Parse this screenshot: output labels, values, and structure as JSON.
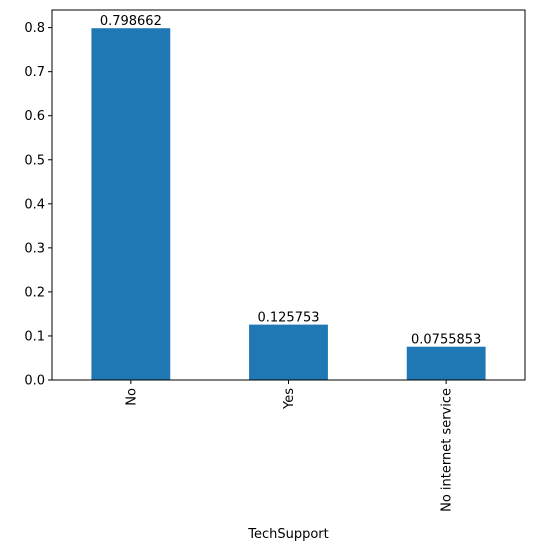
{
  "chart_data": {
    "type": "bar",
    "categories": [
      "No",
      "Yes",
      "No internet service"
    ],
    "values": [
      0.798662,
      0.125753,
      0.0755853
    ],
    "data_labels": [
      "0.798662",
      "0.125753",
      "0.0755853"
    ],
    "title": "",
    "xlabel": "TechSupport",
    "ylabel": "",
    "ylim": [
      0,
      0.84
    ],
    "yticks": [
      "0.0",
      "0.1",
      "0.2",
      "0.3",
      "0.4",
      "0.5",
      "0.6",
      "0.7",
      "0.8"
    ],
    "grid": false,
    "legend": "none",
    "bar_color": "#1f77b4",
    "xtick_rotation": "vertical"
  }
}
